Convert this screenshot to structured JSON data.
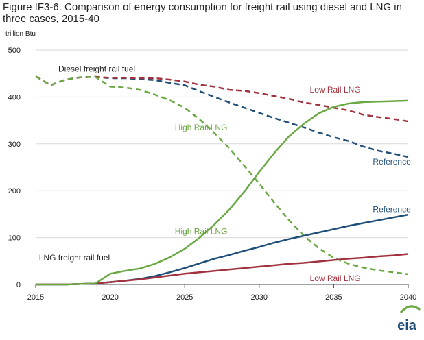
{
  "title": "Figure IF3-6. Comparison of energy consumption for freight rail using diesel and LNG in three cases, 2015-40",
  "units": "trillion Btu",
  "logo": "eia",
  "chart_data": {
    "type": "line",
    "title": "Figure IF3-6. Comparison of energy consumption for freight rail using diesel and LNG in three cases, 2015-40",
    "ylabel": "trillion Btu",
    "xlim": [
      2015,
      2040
    ],
    "ylim": [
      0,
      500
    ],
    "xticks": [
      2015,
      2020,
      2025,
      2030,
      2035,
      2040
    ],
    "yticks": [
      0,
      100,
      200,
      300,
      400,
      500
    ],
    "grid": "horizontal",
    "x": [
      2015,
      2016,
      2017,
      2018,
      2019,
      2020,
      2021,
      2022,
      2023,
      2024,
      2025,
      2026,
      2027,
      2028,
      2029,
      2030,
      2031,
      2032,
      2033,
      2034,
      2035,
      2036,
      2037,
      2038,
      2039,
      2040
    ],
    "series": [
      {
        "group": "Diesel freight rail fuel",
        "case": "Reference",
        "style": "dashed",
        "color": "#1f4e79",
        "values": [
          444,
          425,
          437,
          442,
          443,
          440,
          440,
          438,
          436,
          430,
          425,
          412,
          400,
          388,
          377,
          366,
          355,
          345,
          335,
          324,
          314,
          306,
          294,
          285,
          279,
          272
        ]
      },
      {
        "group": "Diesel freight rail fuel",
        "case": "Low Rail LNG",
        "style": "dashed",
        "color": "#a0333f",
        "values": [
          444,
          425,
          437,
          442,
          443,
          441,
          441,
          440,
          440,
          437,
          433,
          426,
          422,
          415,
          413,
          408,
          402,
          396,
          388,
          383,
          377,
          371,
          362,
          357,
          353,
          348
        ]
      },
      {
        "group": "Diesel freight rail fuel",
        "case": "High Rail LNG",
        "style": "dashed",
        "color": "#6aa842",
        "values": [
          444,
          425,
          437,
          442,
          443,
          422,
          420,
          415,
          405,
          393,
          377,
          352,
          323,
          290,
          253,
          215,
          175,
          137,
          104,
          77,
          57,
          44,
          36,
          30,
          26,
          22
        ]
      },
      {
        "group": "LNG freight rail fuel",
        "case": "Reference",
        "style": "solid",
        "color": "#1f4e79",
        "values": [
          0,
          0,
          0,
          1,
          2,
          5,
          8,
          12,
          18,
          26,
          35,
          45,
          55,
          63,
          72,
          80,
          89,
          97,
          104,
          111,
          118,
          125,
          131,
          137,
          143,
          149
        ]
      },
      {
        "group": "LNG freight rail fuel",
        "case": "Low Rail LNG",
        "style": "solid",
        "color": "#a0333f",
        "values": [
          0,
          0,
          0,
          1,
          2,
          5,
          8,
          11,
          15,
          19,
          23,
          26,
          29,
          32,
          35,
          38,
          41,
          44,
          46,
          49,
          52,
          55,
          57,
          60,
          62,
          65
        ]
      },
      {
        "group": "LNG freight rail fuel",
        "case": "High Rail LNG",
        "style": "solid",
        "color": "#6aa842",
        "values": [
          0,
          0,
          0,
          1,
          2,
          23,
          29,
          34,
          44,
          58,
          76,
          100,
          128,
          160,
          198,
          240,
          280,
          316,
          343,
          365,
          379,
          386,
          389,
          390,
          391,
          392
        ]
      }
    ],
    "annotations": [
      {
        "text": "Diesel freight rail fuel",
        "x": 2019.1,
        "y": 460,
        "color": "#222222"
      },
      {
        "text": "Low Rail LNG",
        "x": 2035.1,
        "y": 415,
        "color": "#a0333f"
      },
      {
        "text": "High Rail LNG",
        "x": 2026.1,
        "y": 335,
        "color": "#6aa842"
      },
      {
        "text": "Reference",
        "x": 2038.9,
        "y": 262,
        "color": "#1f4e79"
      },
      {
        "text": "Reference",
        "x": 2038.9,
        "y": 160,
        "color": "#1f4e79"
      },
      {
        "text": "High Rail LNG",
        "x": 2026.1,
        "y": 113,
        "color": "#6aa842"
      },
      {
        "text": "LNG freight rail fuel",
        "x": 2017.6,
        "y": 57,
        "color": "#222222"
      },
      {
        "text": "Low Rail LNG",
        "x": 2035.1,
        "y": 13,
        "color": "#a0333f"
      }
    ]
  }
}
